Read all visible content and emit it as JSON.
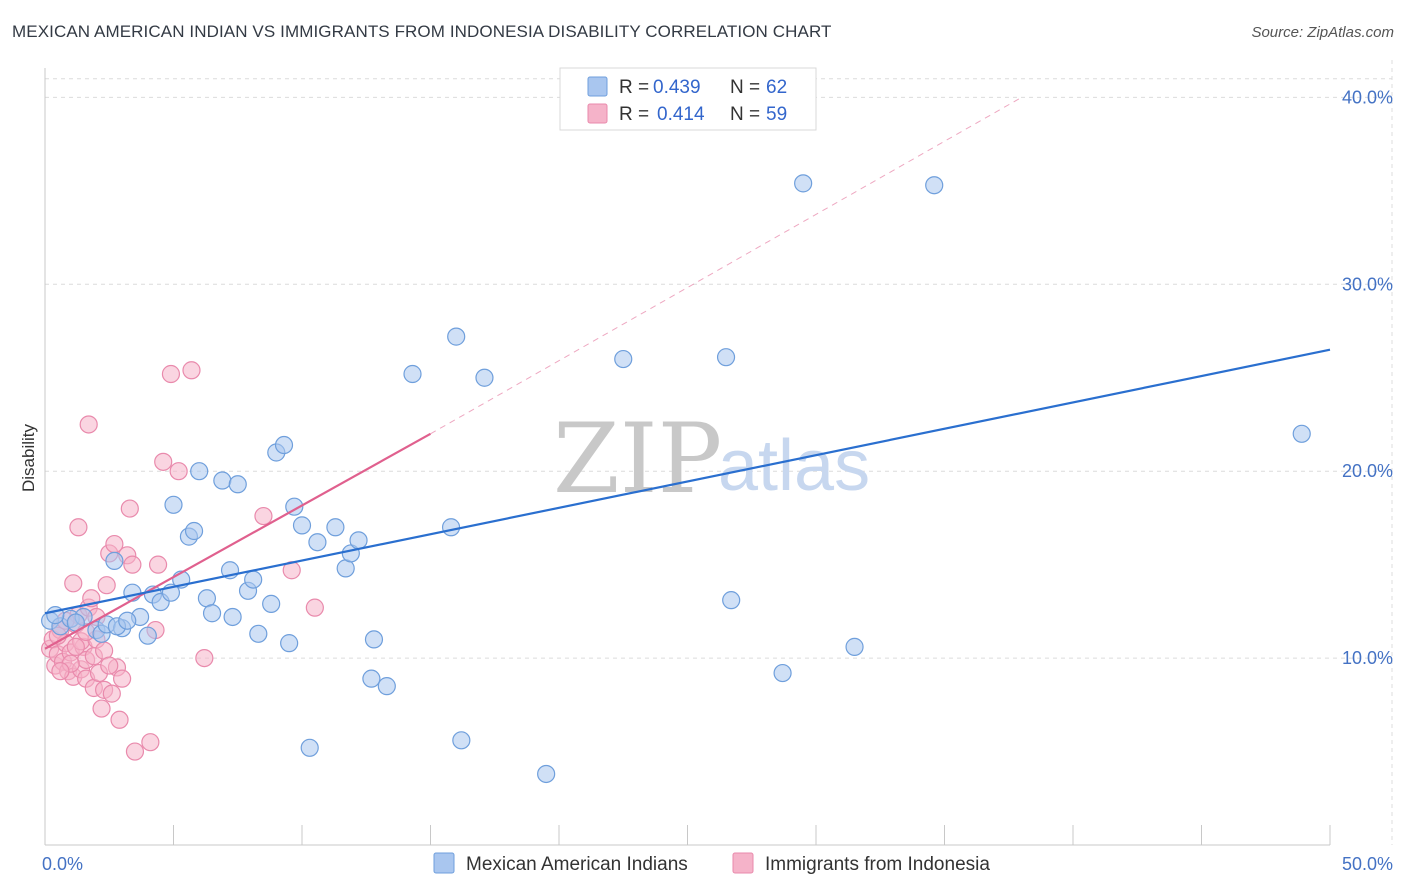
{
  "header": {
    "title": "MEXICAN AMERICAN INDIAN VS IMMIGRANTS FROM INDONESIA DISABILITY CORRELATION CHART",
    "source": "Source: ZipAtlas.com"
  },
  "legend": {
    "r_label": "R =",
    "n_label": "N =",
    "series": [
      {
        "r": "0.439",
        "n": "62"
      },
      {
        "r": "0.414",
        "n": "59"
      }
    ]
  },
  "watermark": {
    "zip": "ZIP",
    "atlas": "atlas"
  },
  "colors": {
    "blue_fill": "#a9c6ef",
    "blue_stroke": "#6f9fdc",
    "blue_line": "#2a6fcf",
    "pink_fill": "#f5b3c9",
    "pink_stroke": "#e98aac",
    "pink_line": "#e0608e",
    "tick_text": "#4472c4",
    "grid": "#dcdcdc"
  },
  "chart_data": {
    "type": "scatter",
    "title": "MEXICAN AMERICAN INDIAN VS IMMIGRANTS FROM INDONESIA DISABILITY CORRELATION CHART",
    "xlabel": "",
    "ylabel": "Disability",
    "xlim": [
      0,
      50
    ],
    "ylim": [
      0,
      42
    ],
    "x_tick_labels": [
      "0.0%",
      "50.0%"
    ],
    "y_ticks": [
      10,
      20,
      30,
      40
    ],
    "y_tick_labels": [
      "10.0%",
      "20.0%",
      "30.0%",
      "40.0%"
    ],
    "grid": true,
    "legend_position": "top-center",
    "series": [
      {
        "name": "Mexican American Indians",
        "color": "blue",
        "trend": {
          "x": [
            0,
            50
          ],
          "y": [
            12.4,
            26.5
          ],
          "dashed_extension": false
        },
        "points": [
          [
            0.2,
            12.0
          ],
          [
            0.6,
            11.7
          ],
          [
            1.0,
            12.1
          ],
          [
            1.5,
            12.2
          ],
          [
            2.0,
            11.5
          ],
          [
            2.2,
            11.3
          ],
          [
            2.4,
            11.8
          ],
          [
            2.7,
            15.2
          ],
          [
            3.0,
            11.6
          ],
          [
            3.4,
            13.5
          ],
          [
            3.7,
            12.2
          ],
          [
            4.0,
            11.2
          ],
          [
            4.2,
            13.4
          ],
          [
            4.5,
            13.0
          ],
          [
            4.9,
            13.5
          ],
          [
            5.0,
            18.2
          ],
          [
            5.3,
            14.2
          ],
          [
            5.6,
            16.5
          ],
          [
            5.8,
            16.8
          ],
          [
            6.0,
            20.0
          ],
          [
            6.3,
            13.2
          ],
          [
            6.5,
            12.4
          ],
          [
            6.9,
            19.5
          ],
          [
            7.2,
            14.7
          ],
          [
            7.3,
            12.2
          ],
          [
            7.5,
            19.3
          ],
          [
            7.9,
            13.6
          ],
          [
            8.1,
            14.2
          ],
          [
            8.3,
            11.3
          ],
          [
            8.8,
            12.9
          ],
          [
            9.0,
            21.0
          ],
          [
            9.3,
            21.4
          ],
          [
            9.5,
            10.8
          ],
          [
            9.7,
            18.1
          ],
          [
            10.0,
            17.1
          ],
          [
            10.3,
            5.2
          ],
          [
            10.6,
            16.2
          ],
          [
            11.3,
            17.0
          ],
          [
            11.7,
            14.8
          ],
          [
            11.9,
            15.6
          ],
          [
            12.2,
            16.3
          ],
          [
            12.7,
            8.9
          ],
          [
            12.8,
            11.0
          ],
          [
            13.3,
            8.5
          ],
          [
            14.3,
            25.2
          ],
          [
            15.8,
            17.0
          ],
          [
            16.0,
            27.2
          ],
          [
            16.2,
            5.6
          ],
          [
            17.1,
            25.0
          ],
          [
            19.5,
            3.8
          ],
          [
            22.5,
            26.0
          ],
          [
            26.5,
            26.1
          ],
          [
            26.7,
            13.1
          ],
          [
            28.7,
            9.2
          ],
          [
            29.5,
            35.4
          ],
          [
            31.5,
            10.6
          ],
          [
            34.6,
            35.3
          ],
          [
            48.9,
            22.0
          ],
          [
            0.4,
            12.3
          ],
          [
            1.2,
            11.9
          ],
          [
            2.8,
            11.7
          ],
          [
            3.2,
            12.0
          ]
        ]
      },
      {
        "name": "Immigrants from Indonesia",
        "color": "pink",
        "trend": {
          "x": [
            0,
            15
          ],
          "y": [
            10.5,
            22.0
          ],
          "dashed_extension": true,
          "extension_to": [
            38,
            40.0
          ]
        },
        "points": [
          [
            0.2,
            10.5
          ],
          [
            0.3,
            11.0
          ],
          [
            0.4,
            9.6
          ],
          [
            0.5,
            10.2
          ],
          [
            0.6,
            11.5
          ],
          [
            0.7,
            9.8
          ],
          [
            0.8,
            10.8
          ],
          [
            0.9,
            9.3
          ],
          [
            1.0,
            10.3
          ],
          [
            1.1,
            9.0
          ],
          [
            1.2,
            11.8
          ],
          [
            1.3,
            12.3
          ],
          [
            1.4,
            9.4
          ],
          [
            1.5,
            10.6
          ],
          [
            1.6,
            9.9
          ],
          [
            1.1,
            14.0
          ],
          [
            1.3,
            17.0
          ],
          [
            1.6,
            8.9
          ],
          [
            1.7,
            12.7
          ],
          [
            1.8,
            13.2
          ],
          [
            1.9,
            8.4
          ],
          [
            2.0,
            12.2
          ],
          [
            2.1,
            9.2
          ],
          [
            2.2,
            7.3
          ],
          [
            1.7,
            22.5
          ],
          [
            2.3,
            8.3
          ],
          [
            2.4,
            13.9
          ],
          [
            2.5,
            15.6
          ],
          [
            2.6,
            8.1
          ],
          [
            2.7,
            16.1
          ],
          [
            2.8,
            9.5
          ],
          [
            2.9,
            6.7
          ],
          [
            3.0,
            8.9
          ],
          [
            3.2,
            15.5
          ],
          [
            3.3,
            18.0
          ],
          [
            3.4,
            15.0
          ],
          [
            3.5,
            5.0
          ],
          [
            4.1,
            5.5
          ],
          [
            4.3,
            11.5
          ],
          [
            4.4,
            15.0
          ],
          [
            4.6,
            20.5
          ],
          [
            4.9,
            25.2
          ],
          [
            5.2,
            20.0
          ],
          [
            5.7,
            25.4
          ],
          [
            6.2,
            10.0
          ],
          [
            8.5,
            17.6
          ],
          [
            9.6,
            14.7
          ],
          [
            10.5,
            12.7
          ],
          [
            0.5,
            11.2
          ],
          [
            0.8,
            12.0
          ],
          [
            1.0,
            9.7
          ],
          [
            1.4,
            10.9
          ],
          [
            1.9,
            10.1
          ],
          [
            2.0,
            11.0
          ],
          [
            2.3,
            10.4
          ],
          [
            2.5,
            9.6
          ],
          [
            0.6,
            9.3
          ],
          [
            1.2,
            10.6
          ],
          [
            1.6,
            11.4
          ]
        ]
      }
    ]
  }
}
